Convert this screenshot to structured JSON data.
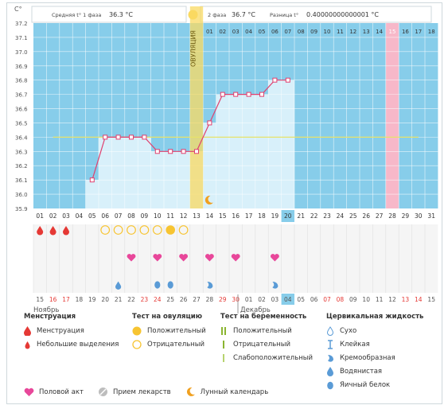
{
  "header": {
    "phase1_label": "Средняя t° 1 фаза",
    "phase1_value": "36.3 °C",
    "phase2_label": "2 фаза",
    "phase2_value": "36.7 °C",
    "diff_label": "Разница t°",
    "diff_value": "0.40000000000001 °C"
  },
  "axis": {
    "unit": "C°",
    "y_ticks": [
      "37.2",
      "37.1",
      "37.0",
      "36.9",
      "36.8",
      "36.7",
      "36.6",
      "36.5",
      "36.4",
      "36.3",
      "36.2",
      "36.1",
      "36.0",
      "35.9"
    ]
  },
  "ovulation_label": "ОВУЛЯЦИЯ",
  "cycle_days_after": [
    "01",
    "02",
    "03",
    "04",
    "05",
    "06",
    "07",
    "08",
    "09",
    "10",
    "11",
    "12",
    "13",
    "14",
    "15",
    "16",
    "17",
    "18"
  ],
  "cycle_days": [
    "01",
    "02",
    "03",
    "04",
    "05",
    "06",
    "07",
    "08",
    "09",
    "10",
    "11",
    "12",
    "13",
    "14",
    "15",
    "16",
    "17",
    "18",
    "19",
    "20",
    "21",
    "22",
    "23",
    "24",
    "25",
    "26",
    "27",
    "28",
    "29",
    "30",
    "31"
  ],
  "dates": [
    "15",
    "16",
    "17",
    "18",
    "19",
    "20",
    "21",
    "22",
    "23",
    "24",
    "25",
    "26",
    "27",
    "28",
    "29",
    "30",
    "01",
    "02",
    "03",
    "04",
    "05",
    "06",
    "07",
    "08",
    "09",
    "10",
    "11",
    "12",
    "13",
    "14",
    "15"
  ],
  "date_colors": [
    "#555555",
    "#e53935",
    "#e53935",
    "#555555",
    "#555555",
    "#555555",
    "#555555",
    "#555555",
    "#e53935",
    "#e53935",
    "#555555",
    "#555555",
    "#555555",
    "#555555",
    "#e53935",
    "#e53935",
    "#555555",
    "#555555",
    "#555555",
    "#555555",
    "#555555",
    "#555555",
    "#e53935",
    "#e53935",
    "#555555",
    "#555555",
    "#555555",
    "#555555",
    "#e53935",
    "#e53935",
    "#555555"
  ],
  "months": {
    "first": "Ноябрь",
    "second": "Декабрь"
  },
  "chart_data": {
    "type": "line",
    "x": [
      5,
      6,
      7,
      8,
      9,
      10,
      11,
      12,
      13,
      14,
      15,
      16,
      17,
      18,
      19,
      20
    ],
    "y": [
      36.1,
      36.4,
      36.4,
      36.4,
      36.4,
      36.3,
      36.3,
      36.3,
      36.3,
      36.5,
      36.7,
      36.7,
      36.7,
      36.7,
      36.8,
      36.8
    ],
    "xlim": [
      1,
      31
    ],
    "ylim": [
      35.9,
      37.2
    ],
    "coverline": 36.4,
    "ovulation_day": 13,
    "today_day": 20,
    "highlight_day": 28,
    "grid": true
  },
  "markers": {
    "menstruation_days": [
      1,
      2,
      3
    ],
    "ovulation_test_negative_days": [
      6,
      7,
      8,
      9,
      10,
      12
    ],
    "ovulation_test_positive_days": [
      11
    ],
    "intercourse_days": [
      8,
      10,
      12,
      14,
      16,
      19
    ],
    "watery_days": [
      7
    ],
    "eggwhite_days": [
      10,
      11
    ],
    "creamy_days": [
      14,
      19
    ],
    "moon_day": 14
  },
  "legend": {
    "menstruation": {
      "title": "Менструация",
      "items": [
        "Менструация",
        "Небольшие выделения"
      ]
    },
    "ovulation_test": {
      "title": "Тест на овуляцию",
      "items": [
        "Положительный",
        "Отрицательный"
      ]
    },
    "pregnancy_test": {
      "title": "Тест на беременность",
      "items": [
        "Положительный",
        "Отрицательный",
        "Слабоположительный"
      ]
    },
    "cervical": {
      "title": "Цервикальная жидкость",
      "items": [
        "Сухо",
        "Клейкая",
        "Кремообразная",
        "Водянистая",
        "Яичный белок"
      ]
    },
    "bottom": [
      "Половой акт",
      "Прием лекарств",
      "Лунный календарь"
    ]
  },
  "colors": {
    "blue": "#87cdea",
    "bar": "#d8f0fa",
    "line": "#e0406e",
    "coverline": "#e7e36a",
    "ovulation": "#fad961",
    "pink_day": "#f7b8c9",
    "red": "#e53935",
    "yellow": "#f7c431",
    "pink": "#e8479a",
    "drop": "#5a9bd6",
    "moon": "#f0a020",
    "green": "#8bb531"
  }
}
